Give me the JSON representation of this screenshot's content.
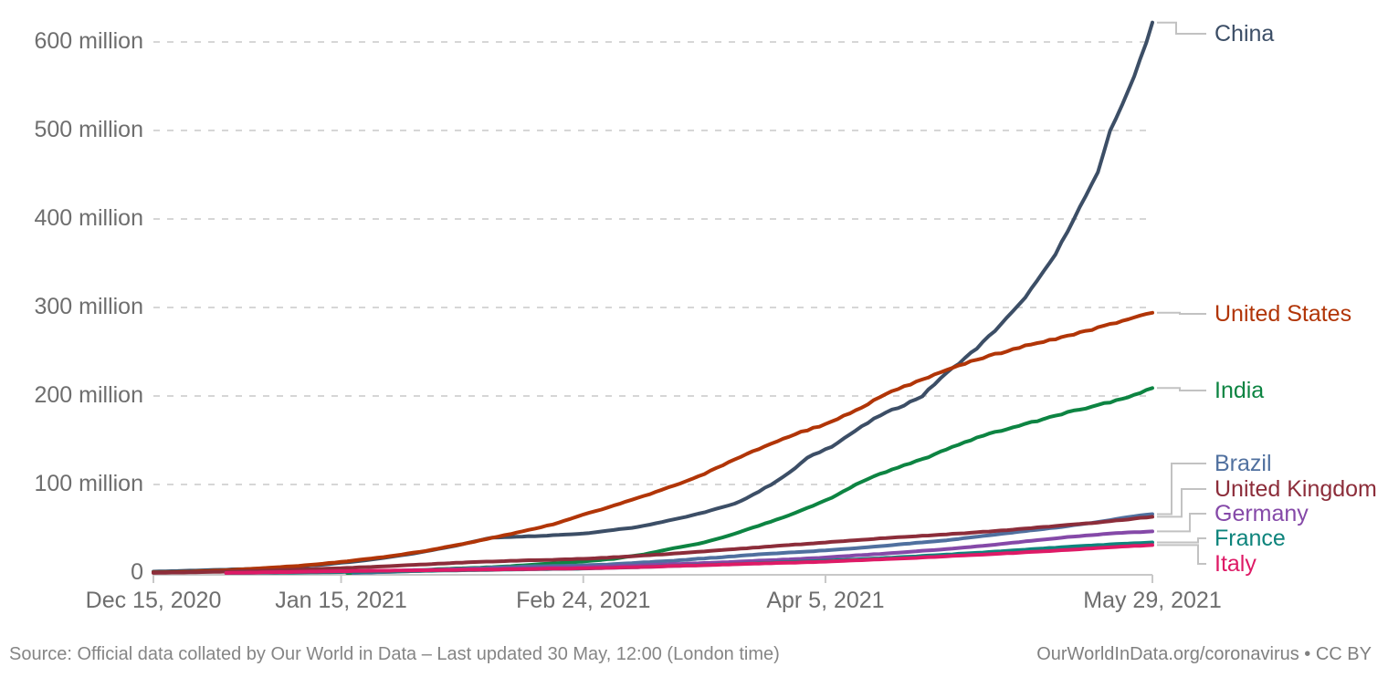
{
  "footer": {
    "source": "Source: Official data collated by Our World in Data – Last updated 30 May, 12:00 (London time)",
    "credit_link": "OurWorldInData.org/coronavirus",
    "credit_license": " • CC BY"
  },
  "chart_data": {
    "type": "line",
    "title": "",
    "xlabel": "",
    "ylabel": "",
    "grid": "dashed-horizontal",
    "legend_position": "right-end-labels",
    "x_axis": {
      "unit": "date",
      "max_day": 165,
      "ticks": [
        {
          "label": "Dec 15, 2020",
          "day": 0
        },
        {
          "label": "Jan 15, 2021",
          "day": 31
        },
        {
          "label": "Feb 24, 2021",
          "day": 71
        },
        {
          "label": "Apr 5, 2021",
          "day": 111
        },
        {
          "label": "May 29, 2021",
          "day": 165
        }
      ]
    },
    "y_axis": {
      "unit": "vaccine doses",
      "ylim": [
        0,
        640
      ],
      "ticks": [
        {
          "label": "0",
          "value": 0
        },
        {
          "label": "100 million",
          "value": 100
        },
        {
          "label": "200 million",
          "value": 200
        },
        {
          "label": "300 million",
          "value": 300
        },
        {
          "label": "400 million",
          "value": 400
        },
        {
          "label": "500 million",
          "value": 500
        },
        {
          "label": "600 million",
          "value": 600
        }
      ]
    },
    "series": [
      {
        "name": "China",
        "color": "#3C4E66",
        "label_y": 37,
        "elbow_x": 1288,
        "points": [
          [
            0,
            1.5
          ],
          [
            8,
            3
          ],
          [
            16,
            4.5
          ],
          [
            23,
            7
          ],
          [
            29,
            10
          ],
          [
            36,
            15
          ],
          [
            43,
            22
          ],
          [
            50,
            31
          ],
          [
            56,
            40
          ],
          [
            64,
            42
          ],
          [
            71,
            44.5
          ],
          [
            80,
            52
          ],
          [
            89,
            65
          ],
          [
            96,
            78
          ],
          [
            100,
            92
          ],
          [
            102,
            100
          ],
          [
            105,
            113
          ],
          [
            108,
            130
          ],
          [
            112,
            143
          ],
          [
            116,
            161
          ],
          [
            120,
            178
          ],
          [
            124,
            190
          ],
          [
            127,
            200
          ],
          [
            130,
            220
          ],
          [
            133,
            237
          ],
          [
            136,
            254
          ],
          [
            139,
            274
          ],
          [
            143,
            303
          ],
          [
            146,
            330
          ],
          [
            149,
            360
          ],
          [
            152,
            400
          ],
          [
            156,
            452
          ],
          [
            158,
            500
          ],
          [
            160,
            528
          ],
          [
            162,
            562
          ],
          [
            164,
            600
          ],
          [
            165,
            622
          ]
        ]
      },
      {
        "name": "United States",
        "color": "#B13507",
        "label_y": 344,
        "elbow_x": 1292,
        "points": [
          [
            0,
            0.6
          ],
          [
            6,
            1.3
          ],
          [
            12,
            3
          ],
          [
            18,
            5.5
          ],
          [
            24,
            8
          ],
          [
            31,
            12.5
          ],
          [
            38,
            18
          ],
          [
            45,
            25
          ],
          [
            52,
            34
          ],
          [
            59,
            44
          ],
          [
            66,
            55
          ],
          [
            71,
            66
          ],
          [
            76,
            76
          ],
          [
            81,
            87
          ],
          [
            87,
            101
          ],
          [
            91,
            112
          ],
          [
            96,
            128
          ],
          [
            101,
            143
          ],
          [
            106,
            157
          ],
          [
            111,
            168
          ],
          [
            116,
            184
          ],
          [
            121,
            202
          ],
          [
            126,
            216
          ],
          [
            131,
            229
          ],
          [
            136,
            241
          ],
          [
            141,
            251
          ],
          [
            146,
            260
          ],
          [
            151,
            268
          ],
          [
            156,
            277
          ],
          [
            161,
            287
          ],
          [
            165,
            294
          ]
        ]
      },
      {
        "name": "India",
        "color": "#0D8442",
        "label_y": 428,
        "elbow_x": 1292,
        "points": [
          [
            32,
            0
          ],
          [
            36,
            1
          ],
          [
            40,
            2.2
          ],
          [
            45,
            3.6
          ],
          [
            50,
            5
          ],
          [
            57,
            7
          ],
          [
            62,
            9
          ],
          [
            67,
            11.3
          ],
          [
            71,
            13
          ],
          [
            76,
            16
          ],
          [
            81,
            21
          ],
          [
            86,
            28
          ],
          [
            90,
            33
          ],
          [
            94,
            40
          ],
          [
            98,
            49
          ],
          [
            102,
            58
          ],
          [
            106,
            68
          ],
          [
            109,
            76
          ],
          [
            112,
            85
          ],
          [
            116,
            100
          ],
          [
            119,
            109
          ],
          [
            122,
            117
          ],
          [
            125,
            124
          ],
          [
            128,
            131
          ],
          [
            131,
            140
          ],
          [
            134,
            148
          ],
          [
            137,
            155
          ],
          [
            140,
            161
          ],
          [
            143,
            166
          ],
          [
            146,
            172
          ],
          [
            149,
            178
          ],
          [
            152,
            183
          ],
          [
            155,
            188
          ],
          [
            158,
            193
          ],
          [
            161,
            199
          ],
          [
            165,
            209
          ]
        ]
      },
      {
        "name": "Brazil",
        "color": "#50709F",
        "label_y": 508,
        "elbow_x": 1283,
        "points": [
          [
            33,
            0
          ],
          [
            38,
            1
          ],
          [
            43,
            2.2
          ],
          [
            48,
            3.8
          ],
          [
            53,
            5.2
          ],
          [
            58,
            6.6
          ],
          [
            63,
            7.6
          ],
          [
            71,
            8.6
          ],
          [
            76,
            10
          ],
          [
            81,
            12
          ],
          [
            86,
            14
          ],
          [
            91,
            16.5
          ],
          [
            96,
            19
          ],
          [
            101,
            21.5
          ],
          [
            106,
            23.5
          ],
          [
            111,
            25.5
          ],
          [
            116,
            28
          ],
          [
            121,
            31
          ],
          [
            126,
            34
          ],
          [
            131,
            37
          ],
          [
            136,
            41
          ],
          [
            141,
            45
          ],
          [
            146,
            49
          ],
          [
            151,
            53
          ],
          [
            156,
            57.5
          ],
          [
            160,
            62
          ],
          [
            163,
            65
          ],
          [
            165,
            66.5
          ]
        ]
      },
      {
        "name": "United Kingdom",
        "color": "#8C2D3A",
        "label_y": 536,
        "elbow_x": 1294,
        "points": [
          [
            0,
            0.15
          ],
          [
            8,
            1
          ],
          [
            16,
            2.2
          ],
          [
            24,
            3.8
          ],
          [
            31,
            5.5
          ],
          [
            38,
            7.5
          ],
          [
            45,
            9.8
          ],
          [
            52,
            12
          ],
          [
            59,
            13.8
          ],
          [
            66,
            15
          ],
          [
            71,
            16
          ],
          [
            78,
            18.5
          ],
          [
            85,
            21.5
          ],
          [
            92,
            25
          ],
          [
            99,
            28.5
          ],
          [
            106,
            32
          ],
          [
            113,
            35.5
          ],
          [
            120,
            39
          ],
          [
            127,
            42
          ],
          [
            134,
            45
          ],
          [
            141,
            48.5
          ],
          [
            148,
            52.5
          ],
          [
            155,
            56.5
          ],
          [
            160,
            60
          ],
          [
            165,
            63.5
          ]
        ]
      },
      {
        "name": "Germany",
        "color": "#8549A8",
        "label_y": 563,
        "elbow_x": 1303,
        "points": [
          [
            12,
            0
          ],
          [
            20,
            0.6
          ],
          [
            28,
            1.3
          ],
          [
            36,
            2.2
          ],
          [
            44,
            3.2
          ],
          [
            52,
            4.2
          ],
          [
            60,
            5.2
          ],
          [
            71,
            6.8
          ],
          [
            78,
            8
          ],
          [
            85,
            9.8
          ],
          [
            92,
            11.5
          ],
          [
            99,
            13.5
          ],
          [
            106,
            15.8
          ],
          [
            111,
            17.5
          ],
          [
            116,
            19.8
          ],
          [
            121,
            22
          ],
          [
            126,
            24.5
          ],
          [
            131,
            27
          ],
          [
            136,
            30
          ],
          [
            141,
            33.5
          ],
          [
            146,
            37
          ],
          [
            151,
            40.5
          ],
          [
            156,
            43.5
          ],
          [
            161,
            45.8
          ],
          [
            165,
            47
          ]
        ]
      },
      {
        "name": "France",
        "color": "#0E847C",
        "label_y": 590,
        "elbow_x": 1312,
        "points": [
          [
            12,
            0
          ],
          [
            22,
            0.3
          ],
          [
            31,
            1
          ],
          [
            40,
            1.8
          ],
          [
            49,
            2.8
          ],
          [
            58,
            3.8
          ],
          [
            71,
            5
          ],
          [
            81,
            6.8
          ],
          [
            91,
            9
          ],
          [
            101,
            11.3
          ],
          [
            111,
            13.8
          ],
          [
            116,
            15.3
          ],
          [
            121,
            17
          ],
          [
            126,
            18.8
          ],
          [
            131,
            20.8
          ],
          [
            136,
            22.8
          ],
          [
            141,
            25
          ],
          [
            146,
            27.3
          ],
          [
            151,
            29.5
          ],
          [
            156,
            31.5
          ],
          [
            161,
            33.3
          ],
          [
            165,
            34.5
          ]
        ]
      },
      {
        "name": "Italy",
        "color": "#DE1A66",
        "label_y": 618,
        "elbow_x": 1312,
        "points": [
          [
            12,
            0
          ],
          [
            20,
            0.8
          ],
          [
            27,
            1.6
          ],
          [
            34,
            2.3
          ],
          [
            44,
            3
          ],
          [
            54,
            3.8
          ],
          [
            64,
            4.6
          ],
          [
            71,
            5.2
          ],
          [
            81,
            6.8
          ],
          [
            91,
            8.8
          ],
          [
            101,
            10.8
          ],
          [
            111,
            12.8
          ],
          [
            118,
            14.8
          ],
          [
            125,
            16.8
          ],
          [
            131,
            18.8
          ],
          [
            137,
            20.8
          ],
          [
            143,
            23
          ],
          [
            149,
            25.3
          ],
          [
            155,
            27.8
          ],
          [
            160,
            29.8
          ],
          [
            165,
            31.5
          ]
        ]
      }
    ]
  }
}
